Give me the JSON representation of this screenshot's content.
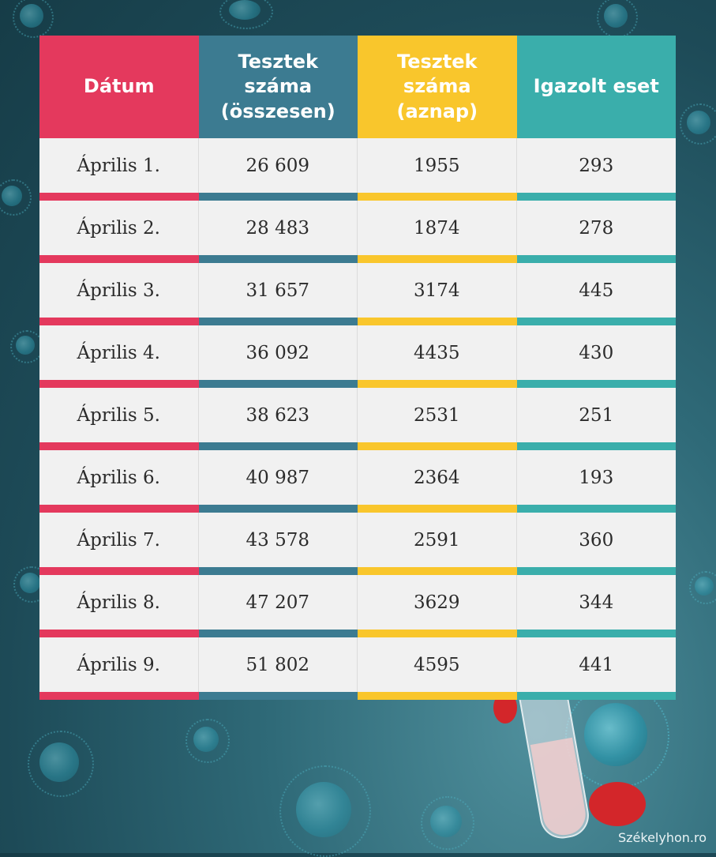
{
  "table": {
    "headers": [
      "Dátum",
      "Tesztek száma\n(összesen)",
      "Tesztek száma\n(aznap)",
      "Igazolt eset"
    ],
    "rows": [
      [
        "Április 1.",
        "26 609",
        "1955",
        "293"
      ],
      [
        "Április 2.",
        "28 483",
        "1874",
        "278"
      ],
      [
        "Április 3.",
        "31 657",
        "3174",
        "445"
      ],
      [
        "Április 4.",
        "36 092",
        "4435",
        "430"
      ],
      [
        "Április 5.",
        "38 623",
        "2531",
        "251"
      ],
      [
        "Április 6.",
        "40 987",
        "2364",
        "193"
      ],
      [
        "Április 7.",
        "43 578",
        "2591",
        "360"
      ],
      [
        "Április 8.",
        "47 207",
        "3629",
        "344"
      ],
      [
        "Április 9.",
        "51 802",
        "4595",
        "441"
      ]
    ]
  },
  "colors": {
    "col1": "#e4395d",
    "col2": "#3c7b91",
    "col3": "#f9c62c",
    "col4": "#3aaeab"
  },
  "watermark": "Székelyhon.ro"
}
